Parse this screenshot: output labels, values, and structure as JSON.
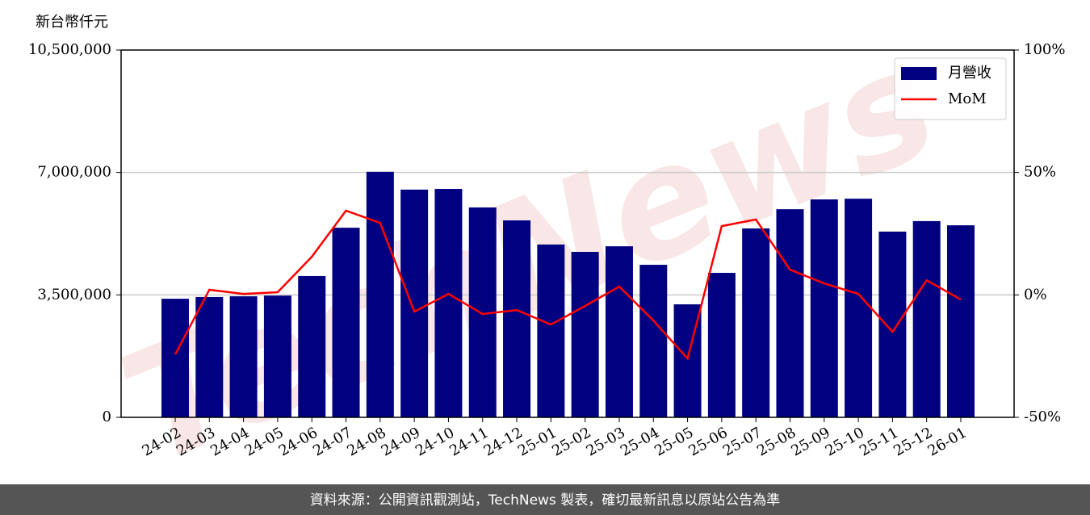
{
  "chart_data": {
    "type": "bar_line",
    "unit_label": "新台幣仟元",
    "watermark": "TechNews",
    "footer": "資料來源：公開資訊觀測站，TechNews 製表，確切最新訊息以原站公告為準",
    "categories": [
      "24-02",
      "24-03",
      "24-04",
      "24-05",
      "24-06",
      "24-07",
      "24-08",
      "24-09",
      "24-10",
      "24-11",
      "24-12",
      "25-01",
      "25-02",
      "25-03",
      "25-04",
      "25-05",
      "25-06",
      "25-07",
      "25-08",
      "25-09",
      "25-10",
      "25-11",
      "25-12",
      "26-01"
    ],
    "series": [
      {
        "name": "月營收",
        "kind": "bar",
        "color": "#000080",
        "values": [
          3390000,
          3440000,
          3460000,
          3480000,
          4040000,
          5420000,
          7020000,
          6510000,
          6530000,
          6000000,
          5630000,
          4940000,
          4730000,
          4890000,
          4360000,
          3230000,
          4130000,
          5400000,
          5950000,
          6230000,
          6250000,
          5310000,
          5610000,
          5490000
        ]
      },
      {
        "name": "MoM",
        "kind": "line",
        "axis": "y2",
        "color": "#ff0000",
        "values": [
          -24.3,
          2.1,
          0.4,
          1.1,
          15.6,
          34.4,
          29.4,
          -6.8,
          0.4,
          -7.8,
          -6.2,
          -12.1,
          -4.5,
          3.4,
          -10.5,
          -26.0,
          28.1,
          30.8,
          10.3,
          4.7,
          0.4,
          -15.1,
          6.0,
          -1.9
        ]
      }
    ],
    "ylim": [
      0,
      10500000
    ],
    "yticks": [
      0,
      {
        "value": 3500000,
        "label": "3,500,000"
      },
      {
        "value": 7000000,
        "label": "7,000,000"
      },
      {
        "value": 10500000,
        "label": "10,500,000"
      }
    ],
    "y2lim": [
      -50,
      100
    ],
    "y2ticks": [
      {
        "value": -50,
        "label": "-50%"
      },
      {
        "value": 0,
        "label": "0%"
      },
      {
        "value": 50,
        "label": "50%"
      },
      {
        "value": 100,
        "label": "100%"
      }
    ],
    "grid": true,
    "legend": "upper right"
  }
}
